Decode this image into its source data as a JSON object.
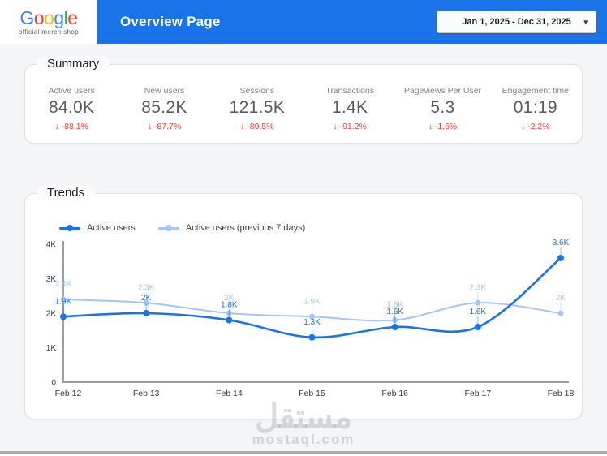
{
  "header": {
    "logo": {
      "letters": [
        {
          "ch": "G",
          "color": "#4285F4"
        },
        {
          "ch": "o",
          "color": "#EA4335"
        },
        {
          "ch": "o",
          "color": "#FBBC05"
        },
        {
          "ch": "g",
          "color": "#4285F4"
        },
        {
          "ch": "l",
          "color": "#34A853"
        },
        {
          "ch": "e",
          "color": "#EA4335"
        }
      ],
      "subtitle": "official merch shop"
    },
    "title": "Overview Page",
    "date_range": "Jan 1, 2025 - Dec 31, 2025",
    "caret": "▾"
  },
  "summary": {
    "section_label": "Summary",
    "delta_arrow": "↓",
    "metrics": [
      {
        "label": "Active users",
        "value": "84.0K",
        "delta": "-88.1%"
      },
      {
        "label": "New users",
        "value": "85.2K",
        "delta": "-87.7%"
      },
      {
        "label": "Sessions",
        "value": "121.5K",
        "delta": "-89.5%"
      },
      {
        "label": "Transactions",
        "value": "1.4K",
        "delta": "-91.2%"
      },
      {
        "label": "Pageviews Per User",
        "value": "5.3",
        "delta": "-1.6%"
      },
      {
        "label": "Engagement time",
        "value": "01:19",
        "delta": "-2.2%"
      }
    ]
  },
  "trends": {
    "section_label": "Trends"
  },
  "chart_data": {
    "type": "line",
    "x": [
      "Feb 12",
      "Feb 13",
      "Feb 14",
      "Feb 15",
      "Feb 16",
      "Feb 17",
      "Feb 18"
    ],
    "series": [
      {
        "name": "Active users",
        "color": "#1a73e8",
        "values": [
          1900,
          2000,
          1800,
          1300,
          1600,
          1600,
          3600
        ],
        "labels": [
          "1.9K",
          "2K",
          "1.8K",
          "1.3K",
          "1.6K",
          "1.6K",
          "3.6K"
        ]
      },
      {
        "name": "Active users (previous 7 days)",
        "color": "#a3c5f7",
        "values": [
          2400,
          2300,
          2000,
          1900,
          1800,
          2300,
          2000
        ],
        "labels": [
          "2.4K",
          "2.3K",
          "2K",
          "1.9K",
          "1.8K",
          "2.3K",
          "2K"
        ]
      }
    ],
    "ylim": [
      0,
      4000
    ],
    "yticks": [
      "0",
      "1K",
      "2K",
      "3K",
      "4K"
    ],
    "legend_position": "top",
    "grid": false,
    "axis_color": "#9aa0a6",
    "tick_label_color": "#3c4043"
  },
  "watermark": {
    "arabic": "مستقل",
    "domain": "mostaql.com"
  }
}
